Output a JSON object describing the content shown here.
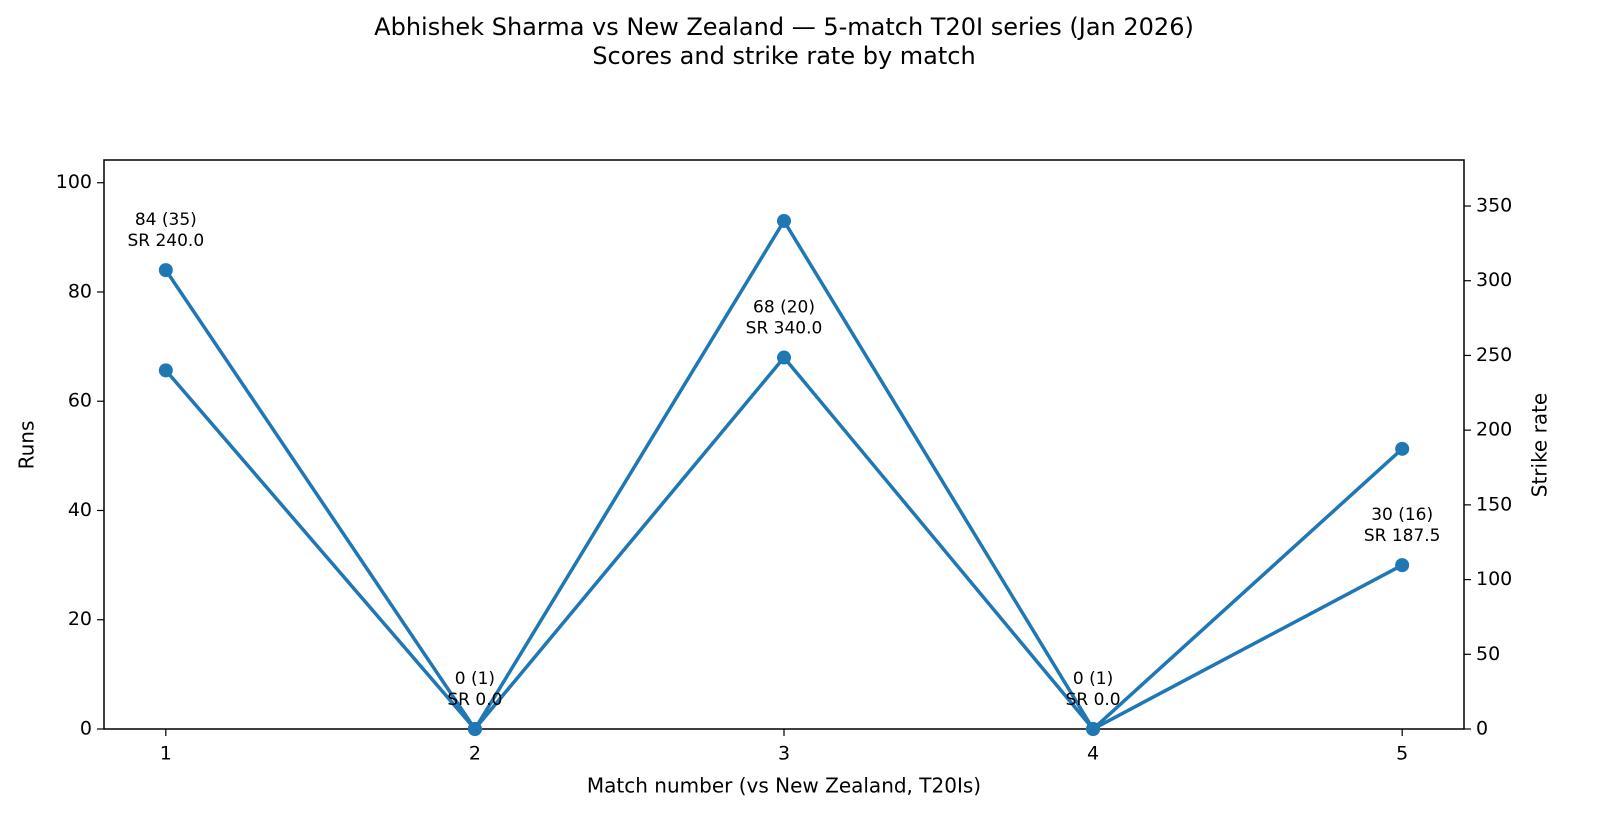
{
  "chart_data": {
    "type": "line",
    "title": "Abhishek Sharma vs New Zealand — 5-match T20I series (Jan 2026)",
    "subtitle": "Scores and strike rate by match",
    "x_label": "Match number (vs New Zealand, T20Is)",
    "y_label": "Runs",
    "y2_label": "Strike rate",
    "x": [
      1,
      2,
      3,
      4,
      5
    ],
    "series": [
      {
        "color": "#1f77b4",
        "values": [
          84,
          0,
          68,
          0,
          30
        ]
      },
      {
        "color": "#1f77b4",
        "values": [
          240,
          0,
          340,
          0,
          187.5
        ],
        "axis": "y2"
      }
    ],
    "annotations": [
      [
        "84 (35)",
        "SR 240.0"
      ],
      [
        "0 (1)",
        "SR 0.0"
      ],
      [
        "68 (20)",
        "SR 340.0"
      ],
      [
        "0 (1)",
        "SR 0.0"
      ],
      [
        "30 (16)",
        "SR 187.5"
      ]
    ],
    "xlim": [
      0.8,
      5.2
    ],
    "xticks": [
      1,
      2,
      3,
      4,
      5
    ],
    "ylim": [
      0,
      104.16
    ],
    "yticks": [
      0,
      20,
      40,
      60,
      80,
      100
    ],
    "y2lim": [
      0,
      380.8
    ],
    "y2ticks": [
      0,
      50,
      100,
      150,
      200,
      250,
      300,
      350
    ],
    "grid": false
  }
}
